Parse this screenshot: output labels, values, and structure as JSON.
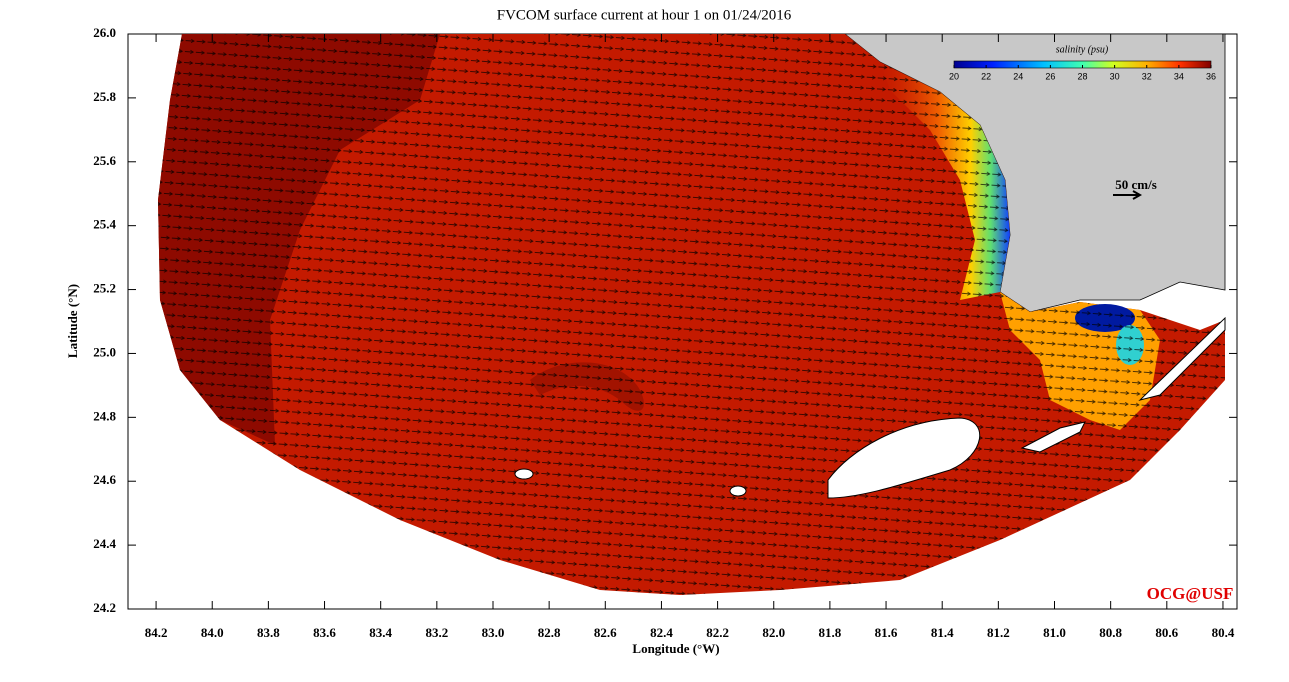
{
  "chart_data": {
    "type": "map",
    "title": "FVCOM surface current at hour 1 on 01/24/2016",
    "x_label": "Longitude (°W)",
    "y_label": "Latitude (°N)",
    "xlim": [
      84.3,
      80.35
    ],
    "ylim": [
      24.2,
      26.0
    ],
    "xticks": [
      84.2,
      {
        "value": 84,
        "label": "84.0"
      },
      83.8,
      83.6,
      83.4,
      83.2,
      {
        "value": 83,
        "label": "83.0"
      },
      82.8,
      82.6,
      82.4,
      82.2,
      {
        "value": 82,
        "label": "82.0"
      },
      81.8,
      81.6,
      81.4,
      81.2,
      {
        "value": 81,
        "label": "81.0"
      },
      80.8,
      80.6,
      80.4
    ],
    "yticks": [
      {
        "value": 24.2,
        "label": "24.2"
      },
      24.4,
      24.6,
      24.8,
      {
        "value": 25,
        "label": "25.0"
      },
      25.2,
      25.4,
      25.6,
      25.8,
      {
        "value": 26,
        "label": "26.0"
      }
    ],
    "colorbar": {
      "label": "salinity (psu)",
      "lim": [
        20,
        36
      ],
      "ticks": [
        20,
        22,
        24,
        26,
        28,
        30,
        32,
        34,
        36
      ]
    },
    "scale_label": "50 cm/s",
    "credit": "OCG@USF"
  }
}
